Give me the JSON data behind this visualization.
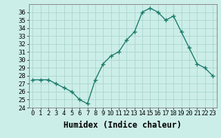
{
  "x": [
    0,
    1,
    2,
    3,
    4,
    5,
    6,
    7,
    8,
    9,
    10,
    11,
    12,
    13,
    14,
    15,
    16,
    17,
    18,
    19,
    20,
    21,
    22,
    23
  ],
  "y": [
    27.5,
    27.5,
    27.5,
    27.0,
    26.5,
    26.0,
    25.0,
    24.5,
    27.5,
    29.5,
    30.5,
    31.0,
    32.5,
    33.5,
    36.0,
    36.5,
    36.0,
    35.0,
    35.5,
    33.5,
    31.5,
    29.5,
    29.0,
    28.0
  ],
  "line_color": "#1a7a6a",
  "marker": "+",
  "marker_size": 5,
  "bg_color": "#cceee8",
  "grid_color": "#aad4ce",
  "xlabel": "Humidex (Indice chaleur)",
  "ylim": [
    24,
    37
  ],
  "xlim": [
    -0.5,
    23.5
  ],
  "yticks": [
    24,
    25,
    26,
    27,
    28,
    29,
    30,
    31,
    32,
    33,
    34,
    35,
    36
  ],
  "xtick_labels": [
    "0",
    "1",
    "2",
    "3",
    "4",
    "5",
    "6",
    "7",
    "8",
    "9",
    "10",
    "11",
    "12",
    "13",
    "14",
    "15",
    "16",
    "17",
    "18",
    "19",
    "20",
    "21",
    "22",
    "23"
  ],
  "tick_fontsize": 6.5,
  "xlabel_fontsize": 8.5
}
